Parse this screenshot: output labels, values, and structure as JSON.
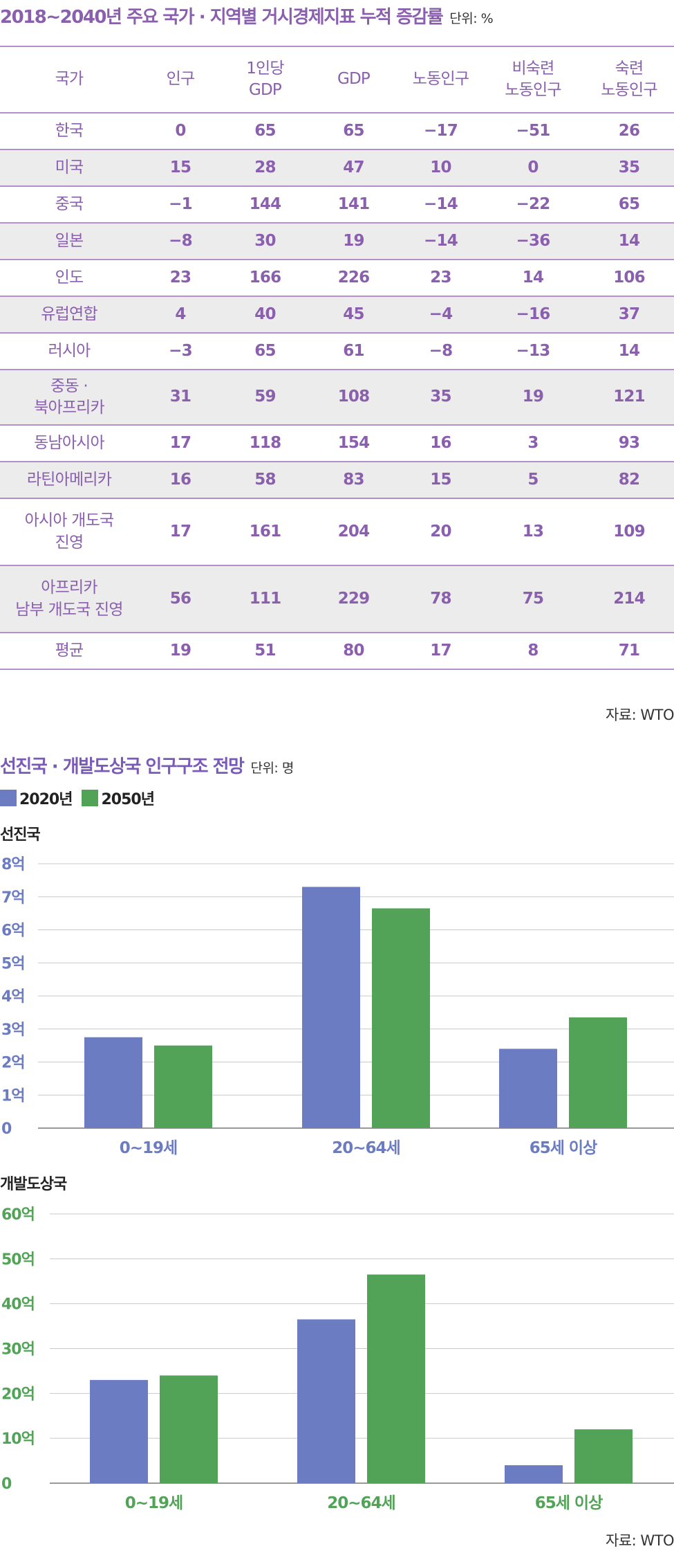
{
  "table": {
    "title": "2018~2040년 주요 국가 · 지역별 거시경제지표 누적 증감률",
    "unit": "단위: %",
    "headers": [
      {
        "line1": "국가",
        "line2": ""
      },
      {
        "line1": "인구",
        "line2": ""
      },
      {
        "line1": "1인당",
        "line2": "GDP"
      },
      {
        "line1": "GDP",
        "line2": ""
      },
      {
        "line1": "노동인구",
        "line2": ""
      },
      {
        "line1": "비숙련",
        "line2": "노동인구"
      },
      {
        "line1": "숙련",
        "line2": "노동인구"
      }
    ],
    "rows": [
      {
        "country": "한국",
        "values": [
          "0",
          "65",
          "65",
          "−17",
          "−51",
          "26"
        ]
      },
      {
        "country": "미국",
        "values": [
          "15",
          "28",
          "47",
          "10",
          "0",
          "35"
        ]
      },
      {
        "country": "중국",
        "values": [
          "−1",
          "144",
          "141",
          "−14",
          "−22",
          "65"
        ]
      },
      {
        "country": "일본",
        "values": [
          "−8",
          "30",
          "19",
          "−14",
          "−36",
          "14"
        ]
      },
      {
        "country": "인도",
        "values": [
          "23",
          "166",
          "226",
          "23",
          "14",
          "106"
        ]
      },
      {
        "country": "유럽연합",
        "values": [
          "4",
          "40",
          "45",
          "−4",
          "−16",
          "37"
        ]
      },
      {
        "country": "러시아",
        "values": [
          "−3",
          "65",
          "61",
          "−8",
          "−13",
          "14"
        ]
      },
      {
        "country": "중동 ·\n북아프리카",
        "values": [
          "31",
          "59",
          "108",
          "35",
          "19",
          "121"
        ]
      },
      {
        "country": "동남아시아",
        "values": [
          "17",
          "118",
          "154",
          "16",
          "3",
          "93"
        ]
      },
      {
        "country": "라틴아메리카",
        "values": [
          "16",
          "58",
          "83",
          "15",
          "5",
          "82"
        ]
      },
      {
        "country": "아시아 개도국\n진영",
        "values": [
          "17",
          "161",
          "204",
          "20",
          "13",
          "109"
        ]
      },
      {
        "country": "아프리카\n남부 개도국 진영",
        "values": [
          "56",
          "111",
          "229",
          "78",
          "75",
          "214"
        ]
      },
      {
        "country": "평균",
        "values": [
          "19",
          "51",
          "80",
          "17",
          "8",
          "71"
        ]
      }
    ],
    "source": "자료: WTO"
  },
  "population": {
    "title": "선진국 · 개발도상국 인구구조 전망",
    "unit": "단위: 명",
    "legend": [
      {
        "label": "2020년",
        "color": "#6b7cc2"
      },
      {
        "label": "2050년",
        "color": "#52a357"
      }
    ],
    "source": "자료: WTO"
  },
  "chart_data": [
    {
      "type": "bar",
      "title": "선진국",
      "categories": [
        "0~19세",
        "20~64세",
        "65세 이상"
      ],
      "series": [
        {
          "name": "2020년",
          "values": [
            2.75,
            7.3,
            2.4
          ]
        },
        {
          "name": "2050년",
          "values": [
            2.5,
            6.65,
            3.35
          ]
        }
      ],
      "ylim": [
        0,
        8
      ],
      "yticks": [
        "0",
        "1억",
        "2억",
        "3억",
        "4억",
        "5억",
        "6억",
        "7억",
        "8억"
      ],
      "ytick_color": "#6b7cc2",
      "grid": true
    },
    {
      "type": "bar",
      "title": "개발도상국",
      "categories": [
        "0~19세",
        "20~64세",
        "65세 이상"
      ],
      "series": [
        {
          "name": "2020년",
          "values": [
            23,
            36.5,
            4
          ]
        },
        {
          "name": "2050년",
          "values": [
            24,
            46.5,
            12
          ]
        }
      ],
      "ylim": [
        0,
        60
      ],
      "yticks": [
        "0",
        "10억",
        "20억",
        "30억",
        "40억",
        "50억",
        "60억"
      ],
      "ytick_color": "#52a357",
      "grid": true
    }
  ]
}
